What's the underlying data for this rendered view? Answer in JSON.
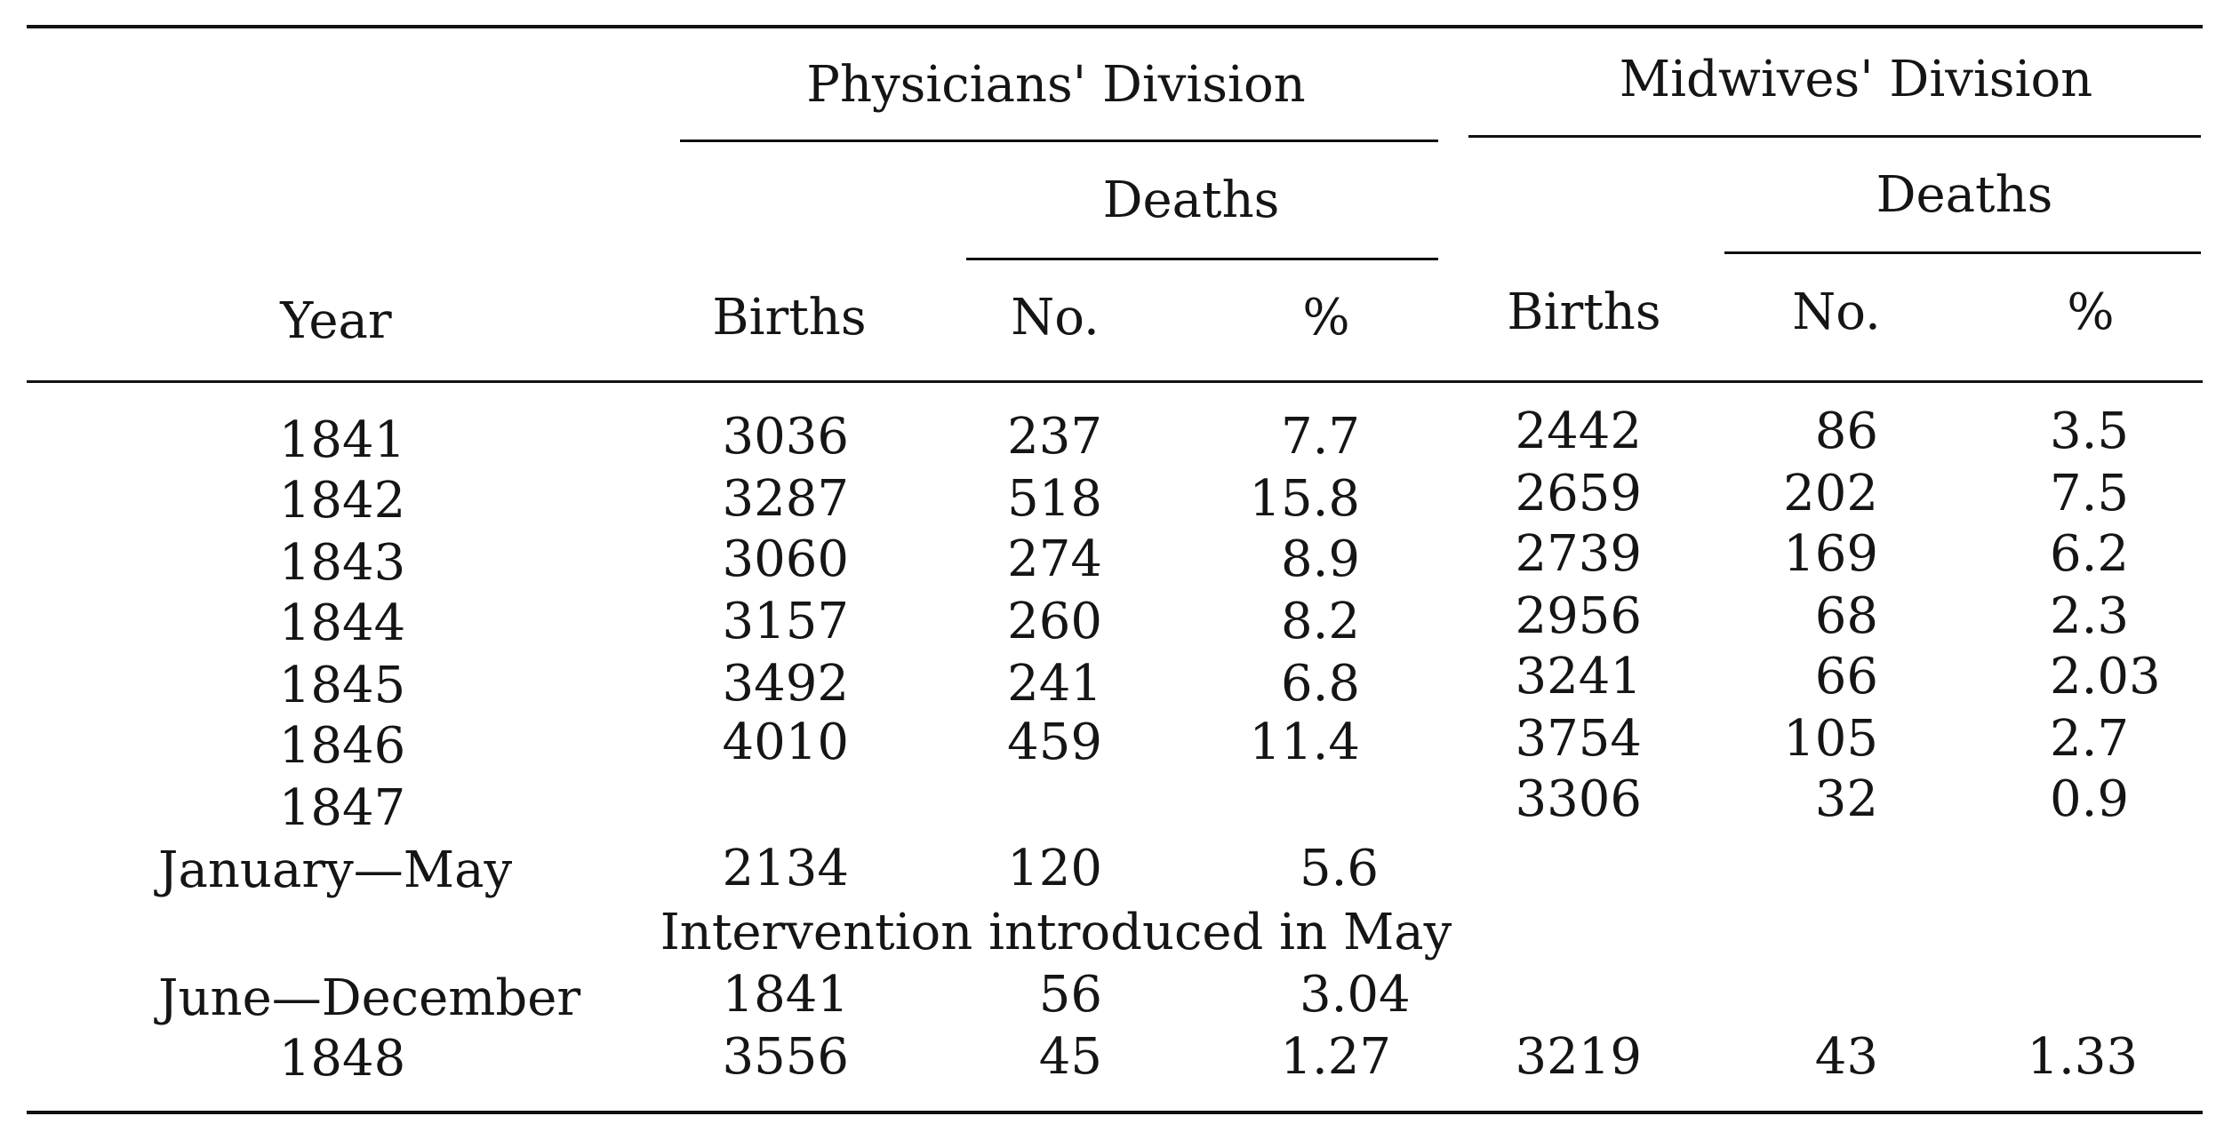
{
  "headers": {
    "physicians_division": "Physicians' Division",
    "midwives_division": "Midwives' Division",
    "physicians_deaths": "Deaths",
    "midwives_deaths": "Deaths",
    "year": "Year",
    "phys_births": "Births",
    "phys_no": "No.",
    "phys_pct": "%",
    "mid_births": "Births",
    "mid_no": "No.",
    "mid_pct": "%"
  },
  "rows": [
    {
      "year": "1841",
      "p_births": "3036",
      "p_no": "237",
      "p_pct": "7.7",
      "m_births": "2442",
      "m_no": "86",
      "m_pct": "3.5"
    },
    {
      "year": "1842",
      "p_births": "3287",
      "p_no": "518",
      "p_pct": "15.8",
      "m_births": "2659",
      "m_no": "202",
      "m_pct": "7.5"
    },
    {
      "year": "1843",
      "p_births": "3060",
      "p_no": "274",
      "p_pct": "8.9",
      "m_births": "2739",
      "m_no": "169",
      "m_pct": "6.2"
    },
    {
      "year": "1844",
      "p_births": "3157",
      "p_no": "260",
      "p_pct": "8.2",
      "m_births": "2956",
      "m_no": "68",
      "m_pct": "2.3"
    },
    {
      "year": "1845",
      "p_births": "3492",
      "p_no": "241",
      "p_pct": "6.8",
      "m_births": "3241",
      "m_no": "66",
      "m_pct": "2.03"
    },
    {
      "year": "1846",
      "p_births": "4010",
      "p_no": "459",
      "p_pct": "11.4",
      "m_births": "3754",
      "m_no": "105",
      "m_pct": "2.7"
    },
    {
      "year": "1847",
      "p_births": "",
      "p_no": "",
      "p_pct": "",
      "m_births": "3306",
      "m_no": "32",
      "m_pct": "0.9"
    },
    {
      "year": "January—May",
      "p_births": "2134",
      "p_no": "120",
      "p_pct": "5.6",
      "m_births": "",
      "m_no": "",
      "m_pct": ""
    },
    {
      "year": "June—December",
      "p_births": "1841",
      "p_no": "56",
      "p_pct": "3.04",
      "m_births": "",
      "m_no": "",
      "m_pct": ""
    },
    {
      "year": "1848",
      "p_births": "3556",
      "p_no": "45",
      "p_pct": "1.27",
      "m_births": "3219",
      "m_no": "43",
      "m_pct": "1.33"
    }
  ],
  "intervention_note": "Intervention introduced in May"
}
